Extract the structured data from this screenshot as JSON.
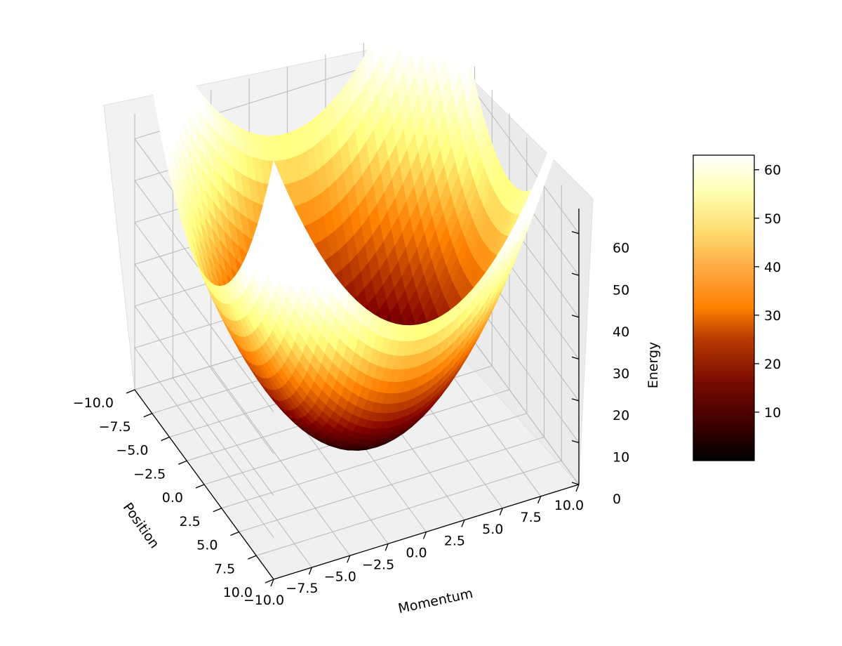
{
  "chart_data": {
    "type": "surface",
    "title": "",
    "function": "z = (x^2 + y^2) / 2",
    "colormap": "afmhot",
    "x": {
      "label": "Momentum",
      "ticks": [
        "−10.0",
        "−7.5",
        "−5.0",
        "−2.5",
        "0.0",
        "2.5",
        "5.0",
        "7.5",
        "10.0"
      ],
      "range": [
        -10,
        10
      ]
    },
    "y": {
      "label": "Position",
      "ticks": [
        "−10.0",
        "−7.5",
        "−5.0",
        "−2.5",
        "0.0",
        "2.5",
        "5.0",
        "7.5",
        "10.0"
      ],
      "range": [
        -10,
        10
      ]
    },
    "z": {
      "label": "Energy",
      "ticks": [
        "0",
        "10",
        "20",
        "30",
        "40",
        "50",
        "60"
      ],
      "range": [
        0,
        66
      ]
    },
    "grid": true,
    "colorbar": {
      "ticks": [
        "10",
        "20",
        "30",
        "40",
        "50",
        "60"
      ],
      "range": [
        0,
        63
      ]
    }
  }
}
